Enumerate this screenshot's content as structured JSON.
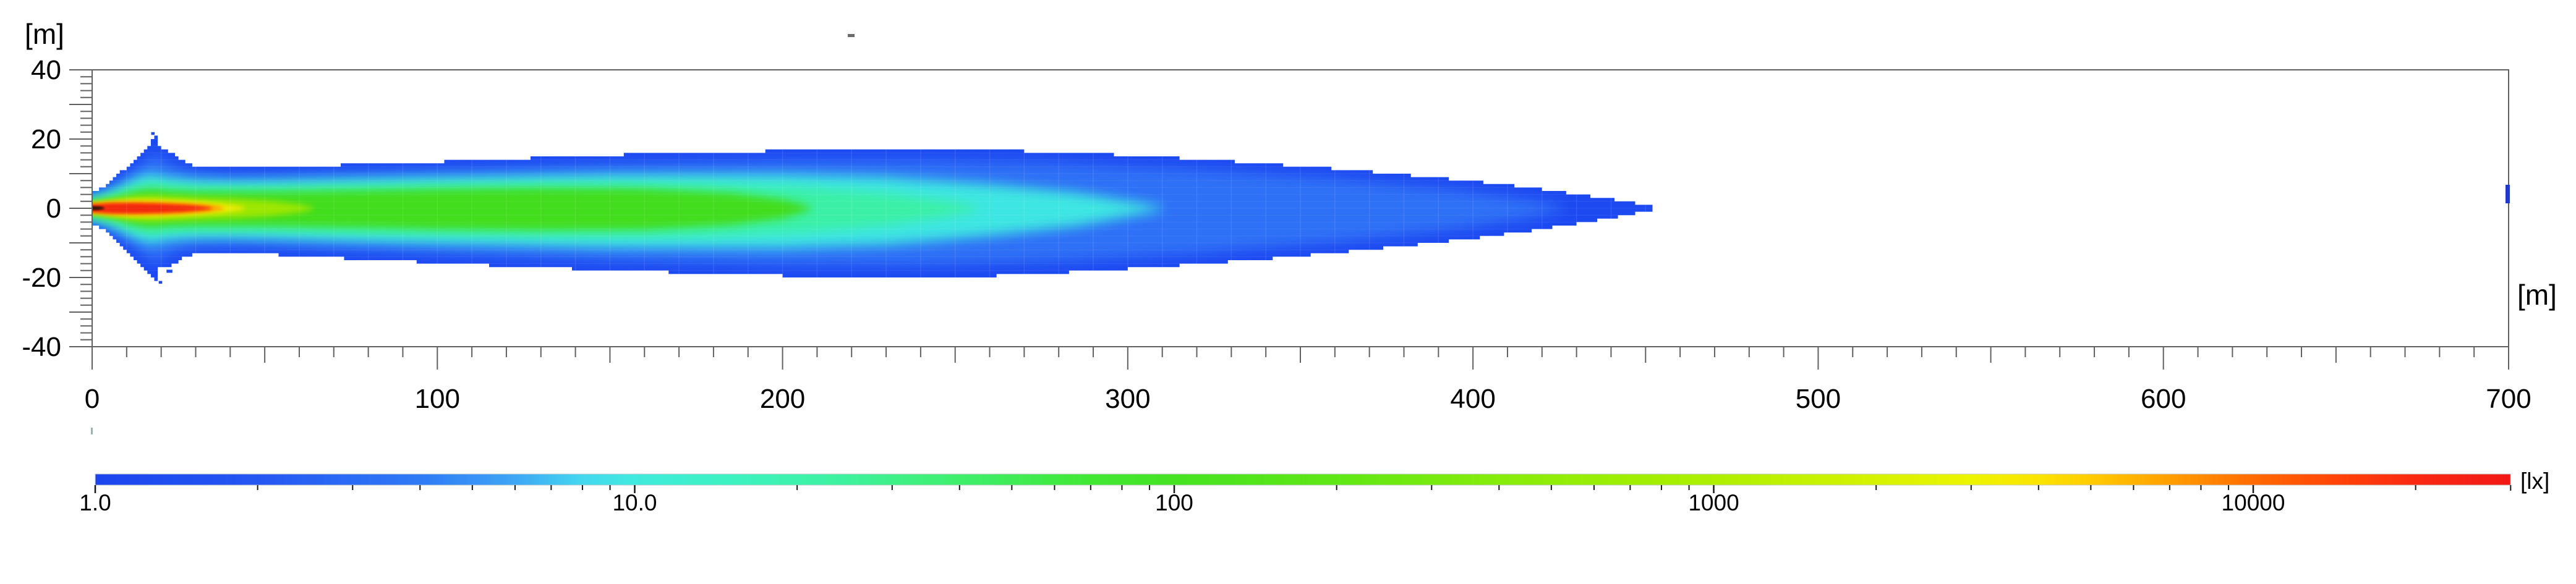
{
  "chart_data": {
    "type": "heatmap",
    "title": "",
    "description": "Isolux illuminance footprint of a spotlight beam on a horizontal plane, log color scale in lux",
    "x_axis": {
      "unit_label": "[m]",
      "min": 0,
      "max": 700,
      "tick_values": [
        0,
        100,
        200,
        300,
        400,
        500,
        600,
        700
      ],
      "tick_labels": [
        "0",
        "100",
        "200",
        "300",
        "400",
        "500",
        "600",
        "700"
      ],
      "medium_tick_step": 50,
      "minor_tick_step": 10
    },
    "y_axis": {
      "unit_label": "[m]",
      "min": -40,
      "max": 40,
      "tick_values": [
        40,
        20,
        0,
        -20,
        -40
      ],
      "tick_labels": [
        "40",
        "20",
        "0",
        "-20",
        "-40"
      ],
      "medium_tick_step": 10,
      "minor_tick_step": 2
    },
    "colorbar": {
      "unit_label": "[lx]",
      "scale": "log",
      "min": 1,
      "max": 30000,
      "tick_values": [
        1,
        10,
        100,
        1000,
        10000
      ],
      "tick_labels": [
        "1.0",
        "10.0",
        "100",
        "1000",
        "10000"
      ],
      "minor_tick_multipliers": [
        2,
        3,
        4,
        5,
        6,
        7,
        8,
        9
      ],
      "gradient_stops": [
        [
          1,
          "#1b45ee"
        ],
        [
          2,
          "#2457f2"
        ],
        [
          4,
          "#2e7af6"
        ],
        [
          6,
          "#3ea6f4"
        ],
        [
          8,
          "#43d8ef"
        ],
        [
          10,
          "#40eadd"
        ],
        [
          15,
          "#3df2c1"
        ],
        [
          25,
          "#3df29b"
        ],
        [
          40,
          "#3eef6c"
        ],
        [
          70,
          "#40e833"
        ],
        [
          100,
          "#45e321"
        ],
        [
          200,
          "#5fe714"
        ],
        [
          400,
          "#86ec0a"
        ],
        [
          700,
          "#9fee02"
        ],
        [
          1000,
          "#adf000"
        ],
        [
          2000,
          "#d6f300"
        ],
        [
          3000,
          "#edf400"
        ],
        [
          4000,
          "#fbe400"
        ],
        [
          5000,
          "#ffcc00"
        ],
        [
          7000,
          "#ff9e00"
        ],
        [
          10000,
          "#ff6b00"
        ],
        [
          14000,
          "#ff4507"
        ],
        [
          20000,
          "#fa2811"
        ],
        [
          30000,
          "#f21815"
        ]
      ]
    },
    "beam": {
      "source_position_m": {
        "x": 0,
        "y": 0
      },
      "max_reach_m": 452,
      "flare_peak_m": {
        "x": 18.5,
        "top": 21.2,
        "bottom": -20.8
      },
      "outer_contour_lx": 1,
      "outer_color": "#1d49f1",
      "outer_top_profile": [
        [
          0,
          4.8
        ],
        [
          3,
          6.0
        ],
        [
          6,
          8.2
        ],
        [
          9,
          11.0
        ],
        [
          12,
          13.8
        ],
        [
          15,
          16.8
        ],
        [
          17,
          18.8
        ],
        [
          18.5,
          21.2
        ],
        [
          19.2,
          19.0
        ],
        [
          19.8,
          16.4
        ],
        [
          21,
          16.7
        ],
        [
          23,
          16.4
        ],
        [
          25,
          14.6
        ],
        [
          27,
          13.2
        ],
        [
          30,
          12.3
        ],
        [
          35,
          11.7
        ],
        [
          40,
          11.5
        ],
        [
          45,
          11.6
        ],
        [
          50,
          11.8
        ],
        [
          60,
          12.1
        ],
        [
          75,
          12.6
        ],
        [
          100,
          13.4
        ],
        [
          125,
          14.4
        ],
        [
          150,
          15.4
        ],
        [
          175,
          16.1
        ],
        [
          200,
          16.6
        ],
        [
          220,
          16.9
        ],
        [
          240,
          17.0
        ],
        [
          260,
          16.8
        ],
        [
          280,
          16.2
        ],
        [
          300,
          15.3
        ],
        [
          320,
          14.2
        ],
        [
          340,
          12.9
        ],
        [
          360,
          11.4
        ],
        [
          380,
          9.7
        ],
        [
          400,
          7.8
        ],
        [
          415,
          6.2
        ],
        [
          428,
          4.4
        ],
        [
          438,
          3.0
        ],
        [
          446,
          1.6
        ],
        [
          451,
          0.8
        ],
        [
          452,
          0.4
        ]
      ],
      "outer_bottom_profile": [
        [
          0,
          4.8
        ],
        [
          3,
          6.0
        ],
        [
          6,
          8.3
        ],
        [
          9,
          11.2
        ],
        [
          12,
          14.2
        ],
        [
          15,
          17.2
        ],
        [
          17,
          19.2
        ],
        [
          18.5,
          20.8
        ],
        [
          19.5,
          17.4
        ],
        [
          21,
          16.9
        ],
        [
          23,
          16.6
        ],
        [
          25,
          15.2
        ],
        [
          27,
          13.9
        ],
        [
          30,
          13.1
        ],
        [
          35,
          12.8
        ],
        [
          40,
          12.8
        ],
        [
          45,
          13.0
        ],
        [
          50,
          13.3
        ],
        [
          60,
          13.8
        ],
        [
          75,
          14.6
        ],
        [
          100,
          15.8
        ],
        [
          125,
          17.0
        ],
        [
          150,
          17.9
        ],
        [
          175,
          18.8
        ],
        [
          200,
          19.5
        ],
        [
          220,
          19.9
        ],
        [
          240,
          20.0
        ],
        [
          260,
          19.6
        ],
        [
          280,
          18.7
        ],
        [
          300,
          17.5
        ],
        [
          320,
          16.2
        ],
        [
          340,
          14.7
        ],
        [
          360,
          12.9
        ],
        [
          380,
          10.9
        ],
        [
          400,
          8.7
        ],
        [
          415,
          6.8
        ],
        [
          428,
          4.8
        ],
        [
          438,
          3.2
        ],
        [
          446,
          1.7
        ],
        [
          451,
          0.9
        ],
        [
          452,
          0.4
        ]
      ],
      "inner_contours": [
        {
          "level_lx": 3,
          "color": "#2e6ff6",
          "blur": 10,
          "points": [
            [
              0,
              3.8,
              3.8
            ],
            [
              6,
              6.5,
              6.6
            ],
            [
              12,
              10.8,
              11.0
            ],
            [
              16,
              14.2,
              14.4
            ],
            [
              18.5,
              16.3,
              16.2
            ],
            [
              21,
              13.4,
              13.8
            ],
            [
              25,
              11.7,
              12.2
            ],
            [
              30,
              10.4,
              11.2
            ],
            [
              40,
              9.7,
              10.8
            ],
            [
              50,
              9.8,
              11.1
            ],
            [
              75,
              10.4,
              12.1
            ],
            [
              100,
              11.1,
              13.1
            ],
            [
              150,
              12.7,
              15.1
            ],
            [
              200,
              13.7,
              16.4
            ],
            [
              240,
              13.9,
              16.6
            ],
            [
              280,
              13.1,
              15.4
            ],
            [
              320,
              11.3,
              13.1
            ],
            [
              360,
              8.7,
              9.9
            ],
            [
              395,
              5.4,
              6.1
            ],
            [
              415,
              2.7,
              3.0
            ],
            [
              426,
              0.5,
              0.6
            ]
          ]
        },
        {
          "level_lx": 10,
          "color": "#3ee6e2",
          "blur": 10,
          "points": [
            [
              0,
              3.0,
              3.0
            ],
            [
              6,
              5.2,
              5.3
            ],
            [
              12,
              8.4,
              8.6
            ],
            [
              17,
              10.4,
              10.5
            ],
            [
              20,
              9.2,
              9.5
            ],
            [
              25,
              8.6,
              8.9
            ],
            [
              30,
              8.1,
              8.6
            ],
            [
              40,
              7.8,
              8.5
            ],
            [
              50,
              7.9,
              8.7
            ],
            [
              75,
              8.4,
              9.5
            ],
            [
              100,
              8.9,
              10.2
            ],
            [
              150,
              9.8,
              11.4
            ],
            [
              200,
              9.9,
              11.6
            ],
            [
              230,
              9.1,
              10.6
            ],
            [
              260,
              7.0,
              8.0
            ],
            [
              285,
              4.6,
              5.2
            ],
            [
              302,
              1.8,
              2.0
            ],
            [
              310,
              0.4,
              0.4
            ]
          ]
        },
        {
          "level_lx": 30,
          "color": "#3bf0a6",
          "blur": 9,
          "points": [
            [
              0,
              2.4,
              2.4
            ],
            [
              6,
              4.0,
              4.1
            ],
            [
              12,
              6.3,
              6.4
            ],
            [
              17,
              7.5,
              7.6
            ],
            [
              22,
              6.8,
              7.0
            ],
            [
              30,
              6.3,
              6.7
            ],
            [
              50,
              6.2,
              6.8
            ],
            [
              75,
              6.6,
              7.4
            ],
            [
              100,
              7.0,
              7.9
            ],
            [
              140,
              7.4,
              8.4
            ],
            [
              175,
              7.2,
              8.2
            ],
            [
              205,
              6.1,
              7.0
            ],
            [
              230,
              4.3,
              4.9
            ],
            [
              248,
              2.0,
              2.2
            ],
            [
              257,
              0.4,
              0.4
            ]
          ]
        },
        {
          "level_lx": 100,
          "color": "#42dd1d",
          "blur": 7,
          "points": [
            [
              0,
              1.9,
              1.9
            ],
            [
              6,
              3.1,
              3.1
            ],
            [
              12,
              4.8,
              4.9
            ],
            [
              17,
              5.6,
              5.7
            ],
            [
              22,
              5.1,
              5.2
            ],
            [
              30,
              4.8,
              5.0
            ],
            [
              50,
              4.8,
              5.1
            ],
            [
              75,
              5.1,
              5.5
            ],
            [
              100,
              5.5,
              6.0
            ],
            [
              130,
              5.8,
              6.3
            ],
            [
              160,
              5.6,
              6.1
            ],
            [
              185,
              4.4,
              4.8
            ],
            [
              200,
              2.6,
              2.9
            ],
            [
              208,
              0.5,
              0.5
            ]
          ]
        },
        {
          "level_lx": 300,
          "color": "#9de600",
          "blur": 5,
          "points": [
            [
              0,
              1.6,
              1.6
            ],
            [
              6,
              2.5,
              2.5
            ],
            [
              12,
              3.4,
              3.4
            ],
            [
              17,
              3.7,
              3.7
            ],
            [
              24,
              3.3,
              3.4
            ],
            [
              32,
              3.0,
              3.1
            ],
            [
              42,
              2.7,
              2.8
            ],
            [
              52,
              2.1,
              2.2
            ],
            [
              60,
              1.1,
              1.2
            ],
            [
              64,
              0.3,
              0.3
            ]
          ]
        },
        {
          "level_lx": 1000,
          "color": "#f0ec00",
          "blur": 4,
          "points": [
            [
              0,
              1.4,
              1.4
            ],
            [
              5,
              2.0,
              2.0
            ],
            [
              12,
              2.5,
              2.5
            ],
            [
              18,
              2.5,
              2.5
            ],
            [
              25,
              2.2,
              2.2
            ],
            [
              32,
              1.8,
              1.8
            ],
            [
              39,
              1.2,
              1.2
            ],
            [
              44,
              0.4,
              0.4
            ]
          ]
        },
        {
          "level_lx": 3000,
          "color": "#ff9400",
          "blur": 3.5,
          "points": [
            [
              0,
              1.25,
              1.25
            ],
            [
              5,
              1.7,
              1.7
            ],
            [
              12,
              1.9,
              1.9
            ],
            [
              20,
              1.8,
              1.8
            ],
            [
              28,
              1.4,
              1.4
            ],
            [
              34,
              0.9,
              0.9
            ],
            [
              38,
              0.3,
              0.3
            ]
          ]
        },
        {
          "level_lx": 10000,
          "color": "#f3250f",
          "blur": 3,
          "points": [
            [
              0,
              1.1,
              1.1
            ],
            [
              5,
              1.45,
              1.45
            ],
            [
              12,
              1.5,
              1.5
            ],
            [
              20,
              1.3,
              1.3
            ],
            [
              27,
              1.0,
              1.0
            ],
            [
              32,
              0.55,
              0.55
            ],
            [
              34.5,
              0.2,
              0.2
            ]
          ]
        },
        {
          "level_lx": 30000,
          "color": "#260c00",
          "blur": 1.5,
          "points": [
            [
              0,
              0.55,
              0.55
            ],
            [
              2.6,
              0.5,
              0.5
            ],
            [
              3.5,
              0.2,
              0.2
            ]
          ]
        }
      ],
      "stray_cells_m": [
        {
          "cx": 17.6,
          "cy": 21.6,
          "w": 1.0,
          "h": 0.8
        },
        {
          "cx": 22.4,
          "cy": -18.2,
          "w": 1.7,
          "h": 0.9
        },
        {
          "cx": 19.8,
          "cy": -21.4,
          "w": 1.0,
          "h": 0.8
        }
      ]
    },
    "marks": {
      "right_border_dash": {
        "color": "#1e38c8"
      },
      "axis_stub_below_origin": {
        "color": "#9ab2b2"
      },
      "top_speck": {
        "color": "#6b6b6b"
      }
    },
    "layout_hints": {
      "grid": "faint 10 m calculation grid inside beam",
      "legend_position": "horizontal color bar at bottom",
      "aspect": "equal x/y scale"
    }
  }
}
